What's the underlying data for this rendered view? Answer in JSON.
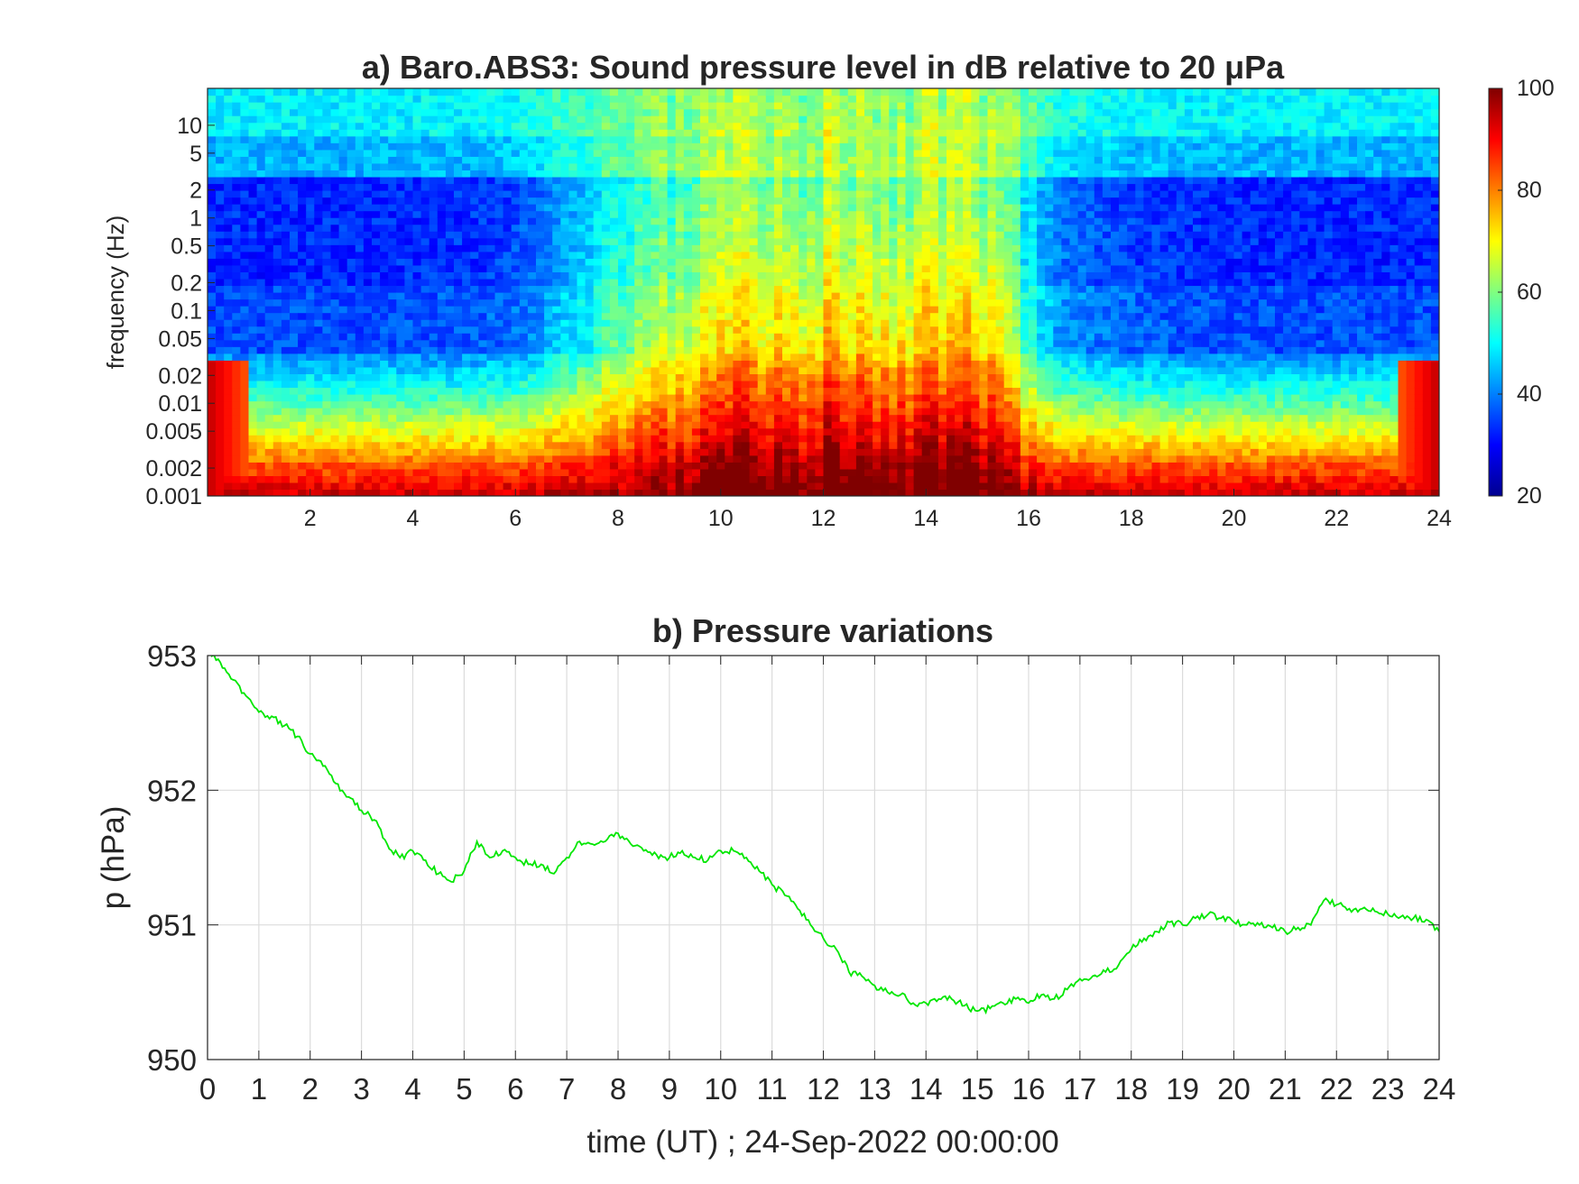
{
  "chart_data": [
    {
      "type": "heatmap",
      "title": "a) Baro.ABS3: Sound pressure level in dB relative to 20 μPa",
      "xlabel": "",
      "ylabel": "frequency (Hz)",
      "x_scale": "linear",
      "y_scale": "log",
      "xlim": [
        0,
        24
      ],
      "ylim": [
        0.001,
        25
      ],
      "x_ticks": [
        2,
        4,
        6,
        8,
        10,
        12,
        14,
        16,
        18,
        20,
        22,
        24
      ],
      "x_tick_labels": [
        "2",
        "4",
        "6",
        "8",
        "10",
        "12",
        "14",
        "16",
        "18",
        "20",
        "22",
        "24"
      ],
      "y_ticks": [
        0.001,
        0.002,
        0.005,
        0.01,
        0.02,
        0.05,
        0.1,
        0.2,
        0.5,
        1,
        2,
        5,
        10
      ],
      "y_tick_labels": [
        "0.001",
        "0.002",
        "0.005",
        "0.01",
        "0.02",
        "0.05",
        "0.1",
        "0.2",
        "0.5",
        "1",
        "2",
        "5",
        "10"
      ],
      "colorbar": {
        "colormap": "jet",
        "range": [
          20,
          100
        ],
        "ticks": [
          20,
          40,
          60,
          80,
          100
        ],
        "tick_labels": [
          "20",
          "40",
          "60",
          "80",
          "100"
        ]
      },
      "grid": false
    },
    {
      "type": "line",
      "title": "b) Pressure variations",
      "xlabel": "time (UT) ; 24-Sep-2022 00:00:00",
      "ylabel": "p (hPa)",
      "xlim": [
        0,
        24
      ],
      "ylim": [
        950,
        953
      ],
      "x_ticks": [
        0,
        1,
        2,
        3,
        4,
        5,
        6,
        7,
        8,
        9,
        10,
        11,
        12,
        13,
        14,
        15,
        16,
        17,
        18,
        19,
        20,
        21,
        22,
        23,
        24
      ],
      "x_tick_labels": [
        "0",
        "1",
        "2",
        "3",
        "4",
        "5",
        "6",
        "7",
        "8",
        "9",
        "10",
        "11",
        "12",
        "13",
        "14",
        "15",
        "16",
        "17",
        "18",
        "19",
        "20",
        "21",
        "22",
        "23",
        "24"
      ],
      "y_ticks": [
        950,
        951,
        952,
        953
      ],
      "y_tick_labels": [
        "950",
        "951",
        "952",
        "953"
      ],
      "grid": true,
      "series": [
        {
          "color": "#00e600",
          "x": [
            0,
            0.25,
            0.5,
            0.75,
            1,
            1.25,
            1.5,
            1.75,
            2,
            2.25,
            2.5,
            2.75,
            3,
            3.25,
            3.5,
            3.75,
            4,
            4.25,
            4.5,
            4.75,
            5,
            5.25,
            5.5,
            5.75,
            6,
            6.25,
            6.5,
            6.75,
            7,
            7.25,
            7.5,
            7.75,
            8,
            8.25,
            8.5,
            8.75,
            9,
            9.25,
            9.5,
            9.75,
            10,
            10.25,
            10.5,
            10.75,
            11,
            11.25,
            11.5,
            11.75,
            12,
            12.25,
            12.5,
            12.75,
            13,
            13.25,
            13.5,
            13.75,
            14,
            14.25,
            14.5,
            14.75,
            15,
            15.25,
            15.5,
            15.75,
            16,
            16.25,
            16.5,
            16.75,
            17,
            17.25,
            17.5,
            17.75,
            18,
            18.25,
            18.5,
            18.75,
            19,
            19.25,
            19.5,
            19.75,
            20,
            20.25,
            20.5,
            20.75,
            21,
            21.25,
            21.5,
            21.75,
            22,
            22.25,
            22.5,
            22.75,
            23,
            23.25,
            23.5,
            23.75,
            24
          ],
          "values": [
            953.05,
            952.95,
            952.82,
            952.7,
            952.58,
            952.55,
            952.48,
            952.4,
            952.27,
            952.18,
            952.05,
            951.95,
            951.85,
            951.78,
            951.6,
            951.5,
            951.55,
            951.48,
            951.38,
            951.32,
            951.4,
            951.62,
            951.5,
            951.55,
            951.5,
            951.45,
            951.45,
            951.38,
            951.5,
            951.62,
            951.6,
            951.62,
            951.68,
            951.6,
            951.55,
            951.52,
            951.5,
            951.55,
            951.5,
            951.48,
            951.55,
            951.55,
            951.5,
            951.4,
            951.3,
            951.22,
            951.12,
            951.0,
            950.9,
            950.82,
            950.65,
            950.62,
            950.55,
            950.5,
            950.48,
            950.42,
            950.42,
            950.45,
            950.45,
            950.4,
            950.36,
            950.38,
            950.42,
            950.45,
            950.42,
            950.48,
            950.45,
            950.52,
            950.6,
            950.62,
            950.65,
            950.7,
            950.82,
            950.9,
            950.95,
            951.02,
            951.0,
            951.05,
            951.08,
            951.05,
            951.02,
            951.0,
            951.0,
            950.98,
            950.95,
            950.98,
            951.0,
            951.18,
            951.15,
            951.12,
            951.12,
            951.1,
            951.08,
            951.06,
            951.05,
            951.04,
            950.95
          ]
        }
      ]
    }
  ]
}
